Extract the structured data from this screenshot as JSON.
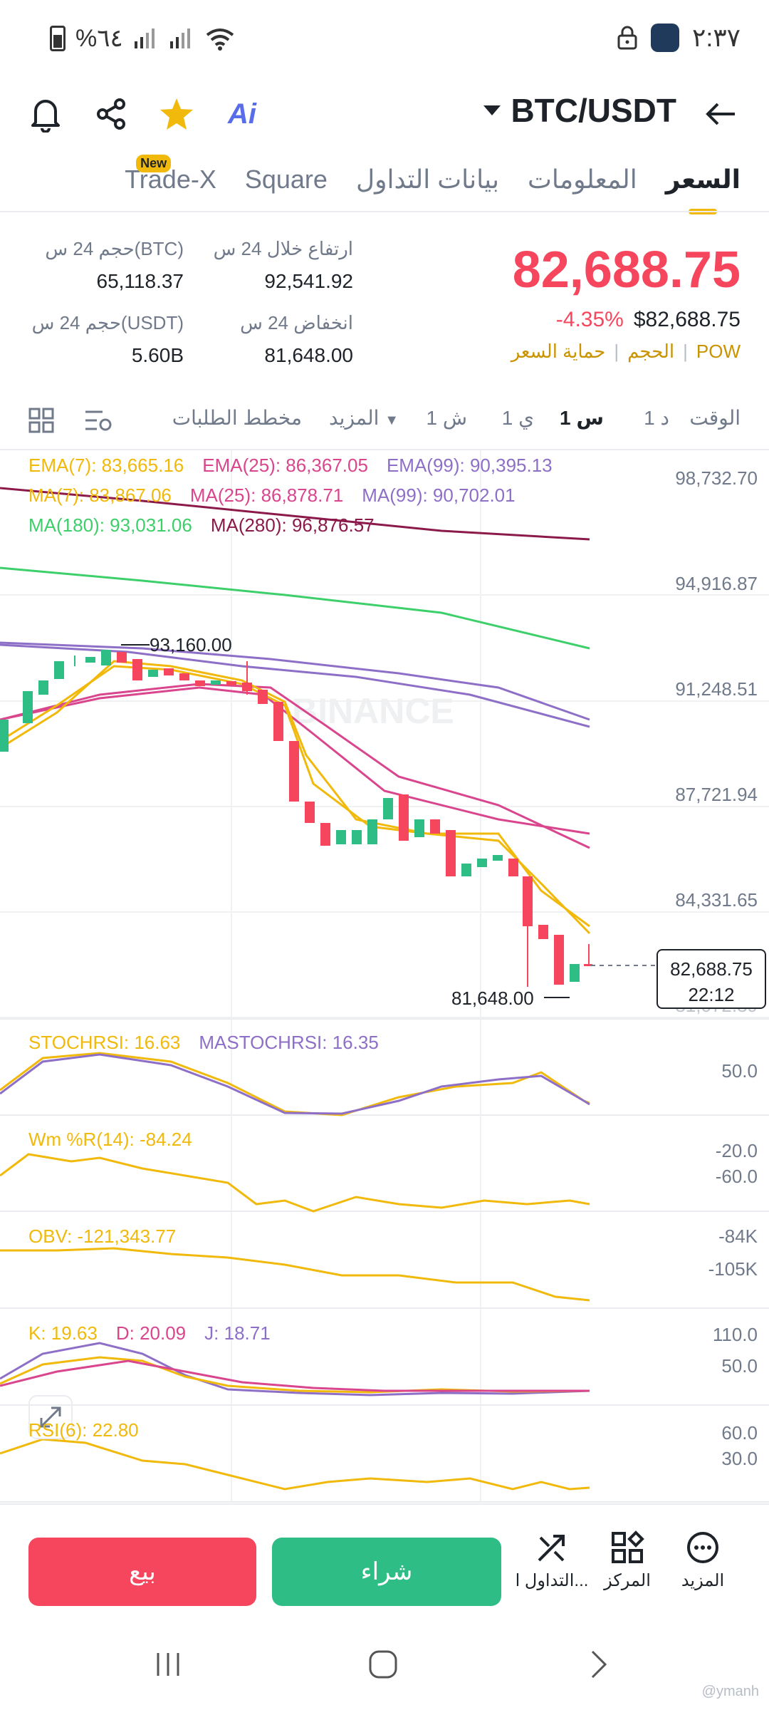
{
  "status_bar": {
    "battery": "%٦٤",
    "time": "٢:٣٧"
  },
  "header": {
    "pair": "BTC/USDT",
    "ai_label": "Ai"
  },
  "tabs": [
    {
      "label": "السعر",
      "active": true
    },
    {
      "label": "المعلومات"
    },
    {
      "label": "بيانات التداول"
    },
    {
      "label": "Square"
    },
    {
      "label": "Trade-X",
      "badge": "New"
    }
  ],
  "price": {
    "last": "82,688.75",
    "usd": "$82,688.75",
    "change": "-4.35%",
    "tags": [
      "POW",
      "الحجم",
      "حماية السعر"
    ]
  },
  "stats": {
    "high_label": "ارتفاع خلال 24 س",
    "high": "92,541.92",
    "low_label": "انخفاض 24 س",
    "low": "81,648.00",
    "vol_btc_label": "حجم 24 س(BTC)",
    "vol_btc": "65,118.37",
    "vol_usdt_label": "حجم 24 س(USDT)",
    "vol_usdt": "5.60B"
  },
  "timebar": {
    "time": "الوقت",
    "d1": "1 د",
    "h1": "1 س",
    "day1": "1 ي",
    "w1": "1 ش",
    "more": "المزيد",
    "depth": "مخطط الطلبات"
  },
  "indicators": {
    "ema7": "EMA(7): 83,665.16",
    "ema25": "EMA(25): 86,367.05",
    "ema99": "EMA(99): 90,395.13",
    "ma7": "MA(7): 83,867.06",
    "ma25": "MA(25): 86,878.71",
    "ma99": "MA(99): 90,702.01",
    "ma180": "MA(180): 93,031.06",
    "ma280": "MA(280): 96,876.57",
    "stochrsi": "STOCHRSI: 16.63",
    "mastochrsi": "MASTOCHRSI: 16.35",
    "wr": "Wm %R(14): -84.24",
    "obv": "OBV: -121,343.77",
    "k": "K: 19.63",
    "d": "D: 20.09",
    "j": "J: 18.71",
    "rsi": "RSI(6): 22.80"
  },
  "axis": {
    "p1": "98,732.70",
    "p2": "94,916.87",
    "p3": "91,248.51",
    "p4": "87,721.94",
    "p5": "84,331.65",
    "p6": "81,072.39",
    "s1": "50.0",
    "w1": "-20.0",
    "w2": "-60.0",
    "o1": "-84K",
    "o2": "-105K",
    "k1": "110.0",
    "k2": "50.0",
    "r1": "60.0",
    "r2": "30.0"
  },
  "annotations": {
    "high_mark": "93,160.00",
    "low_mark": "81,648.00",
    "last_price": "82,688.75",
    "countdown": "22:12",
    "watermark": "BINANCE"
  },
  "actions": {
    "sell": "بيع",
    "buy": "شراء",
    "trade": "التداول ا...",
    "center": "المركز",
    "more": "المزيد"
  },
  "footer": {
    "credit": "@ymanh"
  },
  "colors": {
    "up": "#2ebd85",
    "down": "#f6465d",
    "accent": "#f0b90b"
  }
}
